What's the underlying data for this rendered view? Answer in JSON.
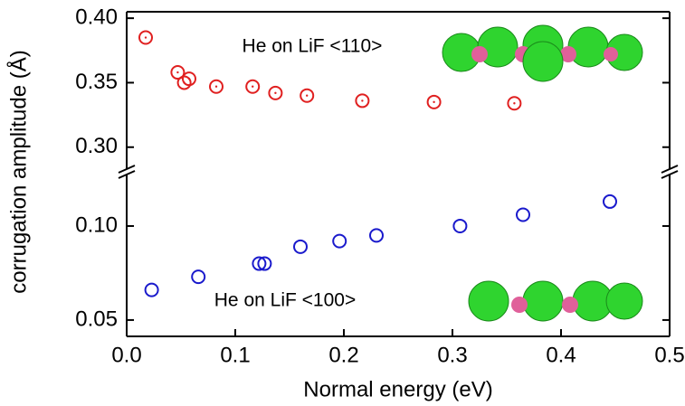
{
  "chart_data": [
    {
      "type": "scatter",
      "y_label": "corrugation amplitude (Å)",
      "series": [
        {
          "name": "He on LiF <110>",
          "color": "#e02020",
          "x": [
            0.0175,
            0.047,
            0.0575,
            0.053,
            0.0825,
            0.116,
            0.137,
            0.166,
            0.217,
            0.283,
            0.357
          ],
          "values": [
            0.385,
            0.358,
            0.353,
            0.35,
            0.347,
            0.347,
            0.342,
            0.34,
            0.336,
            0.335,
            0.334
          ]
        }
      ],
      "xlim": [
        0,
        0.5
      ],
      "ylim": [
        0.283,
        0.405
      ],
      "yticks": [
        {
          "value": 0.3,
          "label": "0.30"
        },
        {
          "value": 0.35,
          "label": "0.35"
        },
        {
          "value": 0.4,
          "label": "0.40"
        }
      ]
    },
    {
      "type": "scatter",
      "x_label": "Normal energy (eV)",
      "series": [
        {
          "name": "He on LiF <100>",
          "color": "#1a1acc",
          "x": [
            0.023,
            0.066,
            0.122,
            0.127,
            0.16,
            0.196,
            0.23,
            0.307,
            0.365,
            0.445
          ],
          "values": [
            0.066,
            0.073,
            0.08,
            0.08,
            0.089,
            0.092,
            0.095,
            0.1,
            0.106,
            0.113
          ]
        }
      ],
      "xlim": [
        0,
        0.5
      ],
      "xticks": [
        {
          "value": 0,
          "label": "0.0"
        },
        0.1,
        0.2,
        0.3,
        0.4,
        0.5
      ],
      "ylim": [
        0.0413,
        0.1274
      ],
      "yticks": [
        {
          "value": 0.05,
          "label": "0.05"
        },
        {
          "value": 0.1,
          "label": "0.10"
        }
      ]
    }
  ]
}
